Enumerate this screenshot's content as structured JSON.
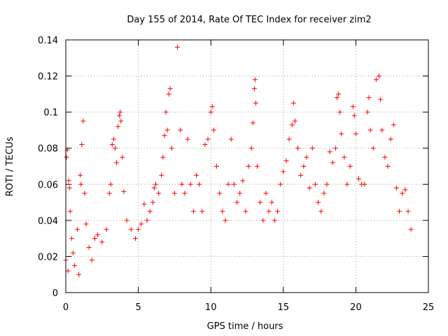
{
  "chart_data": {
    "type": "scatter",
    "title": "Day 155 of 2014, Rate Of TEC Index for receiver zim2",
    "xlabel": "GPS time / hours",
    "ylabel": "ROTI / TECUs",
    "xlim": [
      0,
      25
    ],
    "ylim": [
      0,
      0.14
    ],
    "xticks": [
      0,
      5,
      10,
      15,
      20,
      25
    ],
    "xtick_labels": [
      "0",
      "5",
      "10",
      "15",
      "20",
      "25"
    ],
    "yticks": [
      0,
      0.02,
      0.04,
      0.06,
      0.08,
      0.1,
      0.12,
      0.14
    ],
    "ytick_labels": [
      "0",
      "0.02",
      "0.04",
      "0.06",
      "0.08",
      "0.1",
      "0.12",
      "0.14"
    ],
    "grid": true,
    "marker": "+",
    "color": "#ff0000",
    "series": [
      {
        "name": "ROTI",
        "points": [
          [
            0.0,
            0.018
          ],
          [
            0.05,
            0.075
          ],
          [
            0.1,
            0.079
          ],
          [
            0.15,
            0.012
          ],
          [
            0.2,
            0.062
          ],
          [
            0.25,
            0.058
          ],
          [
            0.3,
            0.045
          ],
          [
            0.4,
            0.03
          ],
          [
            0.5,
            0.022
          ],
          [
            0.6,
            0.015
          ],
          [
            0.8,
            0.035
          ],
          [
            0.9,
            0.01
          ],
          [
            1.0,
            0.065
          ],
          [
            1.05,
            0.06
          ],
          [
            1.1,
            0.082
          ],
          [
            1.2,
            0.095
          ],
          [
            1.3,
            0.055
          ],
          [
            1.4,
            0.038
          ],
          [
            1.6,
            0.025
          ],
          [
            1.8,
            0.018
          ],
          [
            2.0,
            0.03
          ],
          [
            2.2,
            0.032
          ],
          [
            2.5,
            0.028
          ],
          [
            2.8,
            0.035
          ],
          [
            3.0,
            0.055
          ],
          [
            3.1,
            0.06
          ],
          [
            3.2,
            0.082
          ],
          [
            3.3,
            0.085
          ],
          [
            3.4,
            0.08
          ],
          [
            3.5,
            0.072
          ],
          [
            3.6,
            0.092
          ],
          [
            3.7,
            0.098
          ],
          [
            3.75,
            0.1
          ],
          [
            3.8,
            0.095
          ],
          [
            3.9,
            0.075
          ],
          [
            4.0,
            0.056
          ],
          [
            4.2,
            0.04
          ],
          [
            4.5,
            0.035
          ],
          [
            4.8,
            0.03
          ],
          [
            5.0,
            0.035
          ],
          [
            5.2,
            0.038
          ],
          [
            5.4,
            0.049
          ],
          [
            5.6,
            0.04
          ],
          [
            5.8,
            0.045
          ],
          [
            6.0,
            0.05
          ],
          [
            6.1,
            0.058
          ],
          [
            6.2,
            0.06
          ],
          [
            6.4,
            0.055
          ],
          [
            6.6,
            0.065
          ],
          [
            6.7,
            0.075
          ],
          [
            6.8,
            0.087
          ],
          [
            6.9,
            0.1
          ],
          [
            7.0,
            0.09
          ],
          [
            7.1,
            0.11
          ],
          [
            7.2,
            0.113
          ],
          [
            7.3,
            0.08
          ],
          [
            7.5,
            0.055
          ],
          [
            7.7,
            0.136
          ],
          [
            7.9,
            0.09
          ],
          [
            8.0,
            0.06
          ],
          [
            8.2,
            0.055
          ],
          [
            8.4,
            0.085
          ],
          [
            8.6,
            0.06
          ],
          [
            8.8,
            0.045
          ],
          [
            9.0,
            0.065
          ],
          [
            9.2,
            0.06
          ],
          [
            9.4,
            0.045
          ],
          [
            9.6,
            0.082
          ],
          [
            9.8,
            0.085
          ],
          [
            10.0,
            0.1
          ],
          [
            10.1,
            0.103
          ],
          [
            10.2,
            0.09
          ],
          [
            10.4,
            0.07
          ],
          [
            10.6,
            0.055
          ],
          [
            10.8,
            0.045
          ],
          [
            11.0,
            0.04
          ],
          [
            11.2,
            0.06
          ],
          [
            11.4,
            0.085
          ],
          [
            11.6,
            0.06
          ],
          [
            11.8,
            0.05
          ],
          [
            12.0,
            0.055
          ],
          [
            12.2,
            0.062
          ],
          [
            12.4,
            0.045
          ],
          [
            12.6,
            0.07
          ],
          [
            12.8,
            0.08
          ],
          [
            12.9,
            0.094
          ],
          [
            13.0,
            0.113
          ],
          [
            13.05,
            0.118
          ],
          [
            13.1,
            0.105
          ],
          [
            13.2,
            0.07
          ],
          [
            13.4,
            0.05
          ],
          [
            13.6,
            0.04
          ],
          [
            13.8,
            0.055
          ],
          [
            14.0,
            0.045
          ],
          [
            14.2,
            0.05
          ],
          [
            14.4,
            0.04
          ],
          [
            14.6,
            0.045
          ],
          [
            14.8,
            0.06
          ],
          [
            15.0,
            0.067
          ],
          [
            15.2,
            0.073
          ],
          [
            15.4,
            0.085
          ],
          [
            15.6,
            0.093
          ],
          [
            15.7,
            0.105
          ],
          [
            15.8,
            0.095
          ],
          [
            16.0,
            0.08
          ],
          [
            16.2,
            0.065
          ],
          [
            16.4,
            0.07
          ],
          [
            16.6,
            0.075
          ],
          [
            16.8,
            0.058
          ],
          [
            17.0,
            0.08
          ],
          [
            17.2,
            0.06
          ],
          [
            17.4,
            0.05
          ],
          [
            17.6,
            0.045
          ],
          [
            17.8,
            0.055
          ],
          [
            18.0,
            0.06
          ],
          [
            18.2,
            0.078
          ],
          [
            18.4,
            0.072
          ],
          [
            18.6,
            0.08
          ],
          [
            18.7,
            0.108
          ],
          [
            18.8,
            0.11
          ],
          [
            18.9,
            0.1
          ],
          [
            19.0,
            0.088
          ],
          [
            19.2,
            0.075
          ],
          [
            19.4,
            0.06
          ],
          [
            19.6,
            0.07
          ],
          [
            19.8,
            0.103
          ],
          [
            19.9,
            0.098
          ],
          [
            20.0,
            0.088
          ],
          [
            20.2,
            0.063
          ],
          [
            20.4,
            0.06
          ],
          [
            20.6,
            0.06
          ],
          [
            20.8,
            0.1
          ],
          [
            20.9,
            0.108
          ],
          [
            21.0,
            0.09
          ],
          [
            21.2,
            0.08
          ],
          [
            21.4,
            0.118
          ],
          [
            21.6,
            0.12
          ],
          [
            21.7,
            0.107
          ],
          [
            21.8,
            0.09
          ],
          [
            22.0,
            0.075
          ],
          [
            22.2,
            0.07
          ],
          [
            22.4,
            0.085
          ],
          [
            22.6,
            0.093
          ],
          [
            22.8,
            0.058
          ],
          [
            23.0,
            0.045
          ],
          [
            23.2,
            0.055
          ],
          [
            23.4,
            0.057
          ],
          [
            23.6,
            0.045
          ],
          [
            23.8,
            0.035
          ]
        ]
      }
    ]
  }
}
